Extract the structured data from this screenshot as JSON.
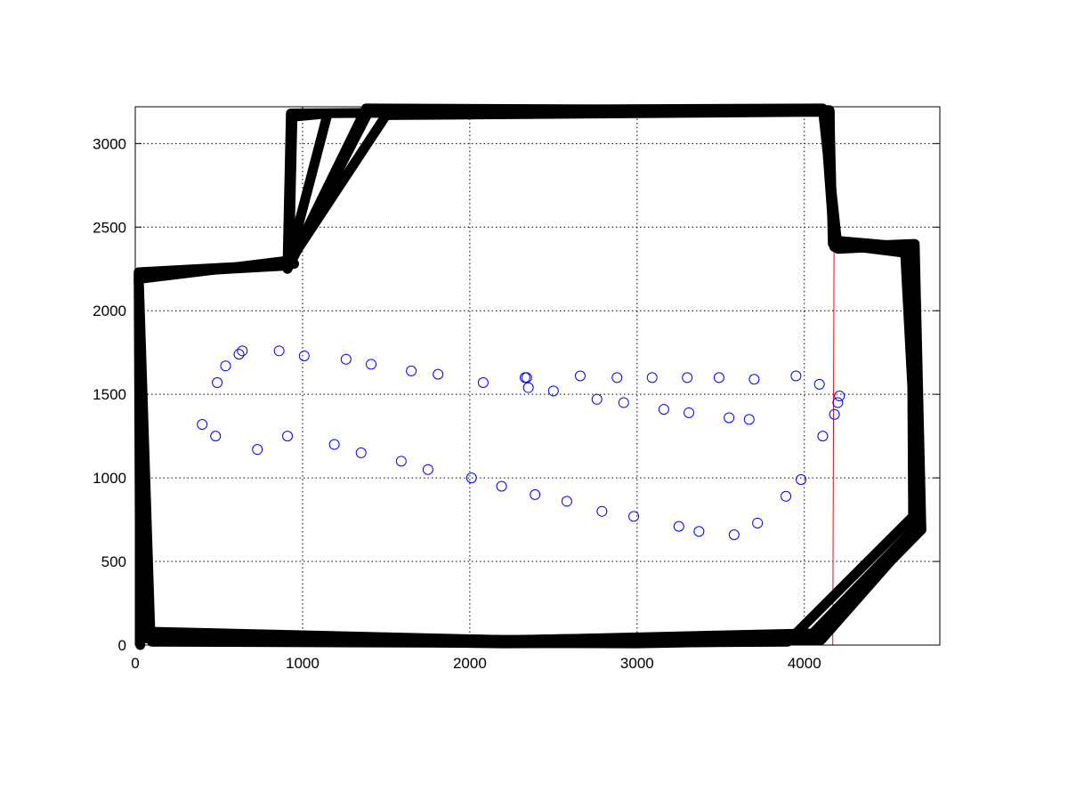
{
  "chart_data": {
    "type": "scatter",
    "title": "",
    "xlabel": "",
    "ylabel": "",
    "xlim": [
      0,
      4810
    ],
    "ylim": [
      0,
      3220
    ],
    "x_ticks": [
      0,
      1000,
      2000,
      3000,
      4000
    ],
    "y_ticks": [
      0,
      500,
      1000,
      1500,
      2000,
      2500,
      3000
    ],
    "grid": true,
    "legend": "none",
    "colors": {
      "boundary": "#000000",
      "reference_boundary": "#ff0000",
      "markers": "#0000ff",
      "grid": "#000000",
      "axes": "#000000"
    },
    "reference_boundary": [
      [
        0,
        2250
      ],
      [
        0,
        0
      ],
      [
        4170,
        0
      ],
      [
        4180,
        3200
      ]
    ],
    "boundary_strokes": [
      [
        [
          110,
          60
        ],
        [
          2300,
          30
        ],
        [
          4050,
          70
        ],
        [
          4680,
          720
        ],
        [
          4650,
          2340
        ],
        [
          4170,
          2400
        ],
        [
          4150,
          3200
        ],
        [
          930,
          3180
        ],
        [
          910,
          2270
        ],
        [
          20,
          2220
        ],
        [
          30,
          0
        ]
      ],
      [
        [
          60,
          40
        ],
        [
          2200,
          10
        ],
        [
          3900,
          20
        ],
        [
          4650,
          770
        ],
        [
          4640,
          2380
        ],
        [
          4180,
          2420
        ],
        [
          4130,
          3190
        ],
        [
          1500,
          3170
        ],
        [
          920,
          2290
        ],
        [
          940,
          3160
        ],
        [
          1150,
          3180
        ],
        [
          920,
          2300
        ],
        [
          20,
          2190
        ],
        [
          80,
          60
        ]
      ],
      [
        [
          100,
          20
        ],
        [
          3000,
          10
        ],
        [
          4100,
          30
        ],
        [
          4690,
          700
        ],
        [
          4600,
          2390
        ],
        [
          4200,
          2370
        ],
        [
          4110,
          3210
        ],
        [
          1400,
          3200
        ],
        [
          910,
          2250
        ],
        [
          1380,
          3210
        ],
        [
          4120,
          3200
        ],
        [
          4180,
          2380
        ],
        [
          4660,
          2400
        ],
        [
          4700,
          690
        ],
        [
          4080,
          60
        ],
        [
          2200,
          30
        ],
        [
          90,
          80
        ],
        [
          20,
          2230
        ],
        [
          950,
          2280
        ]
      ]
    ],
    "points": [
      [
        400,
        1320
      ],
      [
        480,
        1250
      ],
      [
        730,
        1170
      ],
      [
        910,
        1250
      ],
      [
        1190,
        1200
      ],
      [
        1350,
        1150
      ],
      [
        1590,
        1100
      ],
      [
        1750,
        1050
      ],
      [
        2010,
        1000
      ],
      [
        2190,
        950
      ],
      [
        2390,
        900
      ],
      [
        2580,
        860
      ],
      [
        2790,
        800
      ],
      [
        2980,
        770
      ],
      [
        3250,
        710
      ],
      [
        3370,
        680
      ],
      [
        3580,
        660
      ],
      [
        3720,
        730
      ],
      [
        3890,
        890
      ],
      [
        3980,
        990
      ],
      [
        4110,
        1250
      ],
      [
        4180,
        1380
      ],
      [
        4200,
        1450
      ],
      [
        4210,
        1490
      ],
      [
        4090,
        1560
      ],
      [
        3950,
        1610
      ],
      [
        3700,
        1590
      ],
      [
        3490,
        1600
      ],
      [
        3300,
        1600
      ],
      [
        3090,
        1600
      ],
      [
        2880,
        1600
      ],
      [
        2660,
        1610
      ],
      [
        2500,
        1520
      ],
      [
        2350,
        1540
      ],
      [
        2340,
        1600
      ],
      [
        2330,
        1600
      ],
      [
        2080,
        1570
      ],
      [
        1810,
        1620
      ],
      [
        1650,
        1640
      ],
      [
        1410,
        1680
      ],
      [
        1260,
        1710
      ],
      [
        1010,
        1730
      ],
      [
        860,
        1760
      ],
      [
        640,
        1760
      ],
      [
        620,
        1740
      ],
      [
        540,
        1670
      ],
      [
        490,
        1570
      ],
      [
        2760,
        1470
      ],
      [
        2920,
        1450
      ],
      [
        3160,
        1410
      ],
      [
        3310,
        1390
      ],
      [
        3550,
        1360
      ],
      [
        3670,
        1350
      ]
    ]
  }
}
